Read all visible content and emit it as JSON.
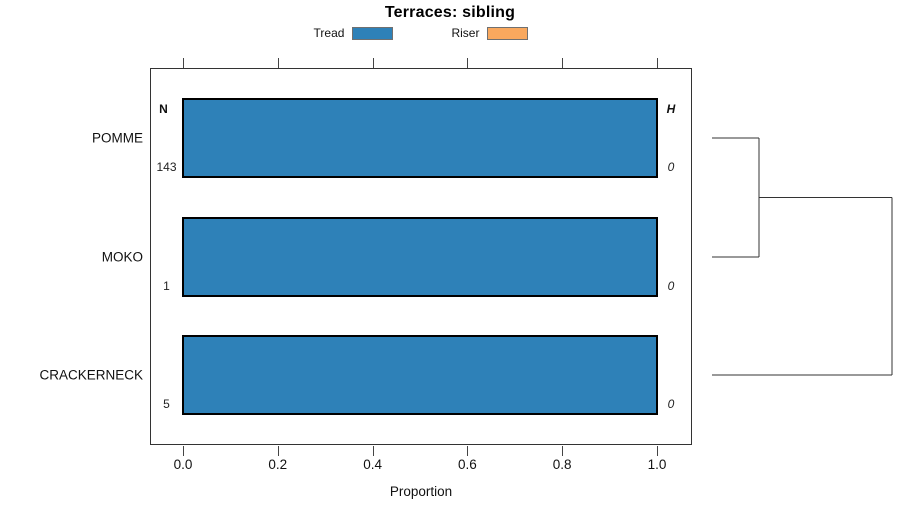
{
  "title": "Terraces: sibling",
  "legend": [
    {
      "label": "Tread",
      "color": "#2E81B8"
    },
    {
      "label": "Riser",
      "color": "#F9A85E"
    }
  ],
  "chart_data": {
    "type": "bar",
    "orientation": "horizontal",
    "title": "Terraces: sibling",
    "categories": [
      "POMME",
      "MOKO",
      "CRACKERNECK"
    ],
    "series": [
      {
        "name": "Tread",
        "color": "#2E81B8",
        "values": [
          1.0,
          1.0,
          1.0
        ]
      },
      {
        "name": "Riser",
        "color": "#F9A85E",
        "values": [
          0.0,
          0.0,
          0.0
        ]
      }
    ],
    "n_header": "N",
    "n_values": [
      "143",
      "1",
      "5"
    ],
    "h_header": "H",
    "h_values": [
      "0",
      "0",
      "0"
    ],
    "xlabel": "Proportion",
    "xlim": [
      0.0,
      1.0
    ],
    "xticks": [
      "0.0",
      "0.2",
      "0.4",
      "0.6",
      "0.8",
      "1.0"
    ],
    "grid": false,
    "legend_position": "top"
  },
  "dendrogram": {
    "leaves": [
      "POMME",
      "MOKO",
      "CRACKERNECK"
    ],
    "merges": [
      {
        "a": "POMME",
        "b": "MOKO",
        "height": 0.26
      },
      {
        "a": "#0",
        "b": "CRACKERNECK",
        "height": 1.0
      }
    ],
    "line_color": "#333333"
  }
}
